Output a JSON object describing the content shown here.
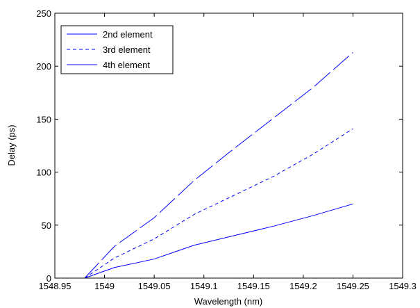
{
  "chart_data": {
    "type": "line",
    "title": "",
    "xlabel": "Wavelength (nm)",
    "ylabel": "Delay (ps)",
    "xlim": [
      1548.95,
      1549.3
    ],
    "ylim": [
      0,
      250
    ],
    "x_ticks": [
      1548.95,
      1549,
      1549.05,
      1549.1,
      1549.15,
      1549.2,
      1549.25,
      1549.3
    ],
    "x_tick_labels": [
      "1548.95",
      "1549",
      "1549.05",
      "1549.1",
      "1549.15",
      "1549.2",
      "1549.25",
      "1549.3"
    ],
    "y_ticks": [
      0,
      50,
      100,
      150,
      200,
      250
    ],
    "y_tick_labels": [
      "0",
      "50",
      "100",
      "150",
      "200",
      "250"
    ],
    "grid": false,
    "legend_position": "top-left",
    "series_color": "#0000ff",
    "series": [
      {
        "name": "2nd element",
        "line_style": "solid",
        "x": [
          1548.98,
          1549.01,
          1549.05,
          1549.09,
          1549.13,
          1549.17,
          1549.21,
          1549.25
        ],
        "y": [
          0,
          10,
          18,
          31,
          40,
          49,
          59,
          70
        ]
      },
      {
        "name": "3rd element",
        "line_style": "dashed",
        "x": [
          1548.98,
          1549.01,
          1549.05,
          1549.09,
          1549.13,
          1549.17,
          1549.21,
          1549.25
        ],
        "y": [
          0,
          19,
          37,
          60,
          78,
          96,
          117,
          141
        ]
      },
      {
        "name": "4th element",
        "line_style": "long-dashed",
        "x": [
          1548.98,
          1549.01,
          1549.05,
          1549.09,
          1549.13,
          1549.17,
          1549.21,
          1549.25
        ],
        "y": [
          0,
          30,
          57,
          92,
          122,
          151,
          180,
          213
        ]
      }
    ]
  }
}
